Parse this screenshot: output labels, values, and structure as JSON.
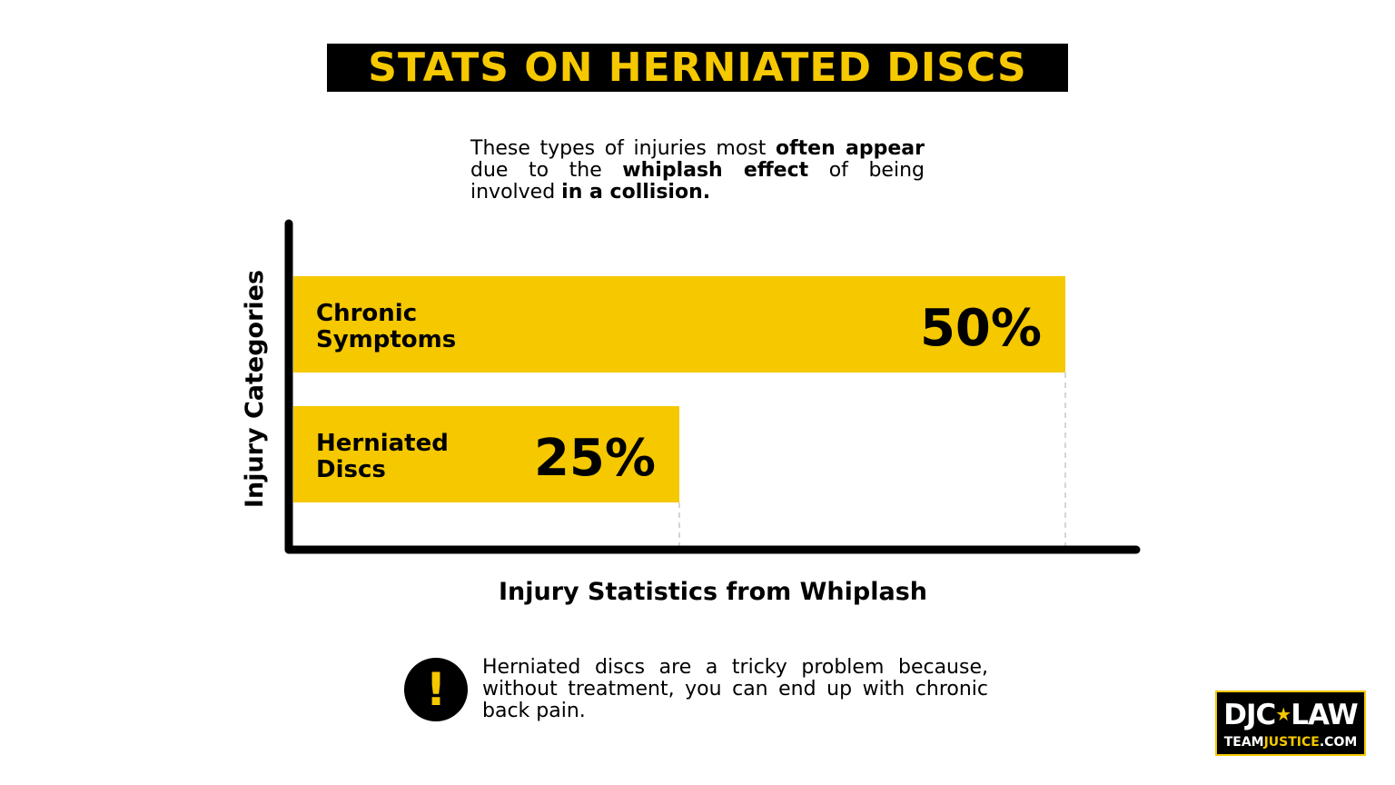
{
  "header": {
    "title": "STATS ON HERNIATED DISCS"
  },
  "intro": {
    "t1": "These types of injuries most ",
    "b1": "often appear",
    "t2": " due to the ",
    "b2": "whiplash effect",
    "t3": " of being involved ",
    "b3": "in a collision."
  },
  "chart_data": {
    "type": "bar",
    "orientation": "horizontal",
    "categories": [
      [
        "Chronic",
        "Symptoms"
      ],
      [
        "Herniated",
        "Discs"
      ]
    ],
    "values": [
      50,
      25
    ],
    "value_labels": [
      "50%",
      "25%"
    ],
    "xlabel": "Injury Statistics from Whiplash",
    "ylabel": "Injury Categories",
    "xlim": [
      0,
      55
    ],
    "bar_color": "#f5c800",
    "grid": false
  },
  "callout": {
    "icon": "exclamation-icon",
    "icon_glyph": "!",
    "text": "Herniated discs are a tricky problem because, without treatment, you can end up with chronic back pain."
  },
  "logo": {
    "left": "DJC",
    "star": "★",
    "right": "LAW",
    "bottom_a": "TEAM",
    "bottom_b": "JUSTICE",
    "bottom_c": ".COM"
  },
  "colors": {
    "accent": "#f5c800",
    "dark": "#000000"
  }
}
